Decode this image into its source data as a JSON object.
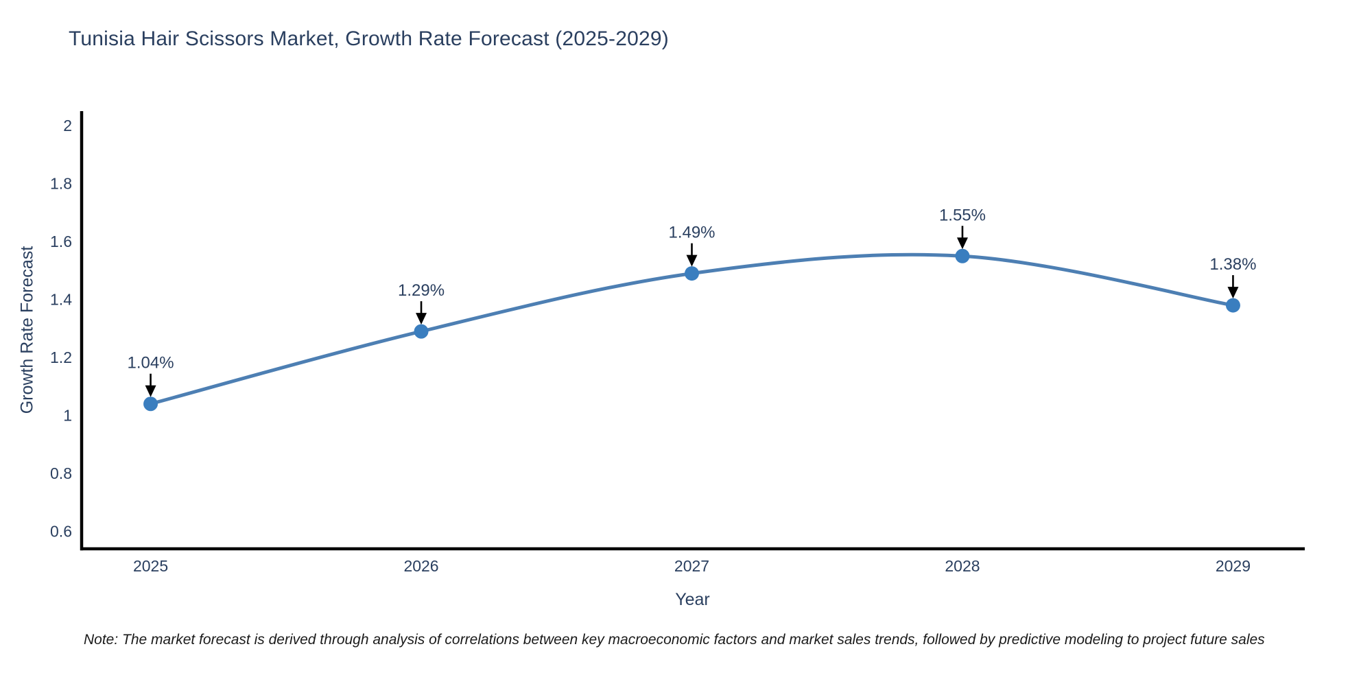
{
  "title": "Tunisia Hair Scissors Market, Growth Rate Forecast (2025-2029)",
  "note": "Note: The market forecast is derived through analysis of correlations between key macroeconomic factors and market sales trends, followed by predictive modeling to project future sales",
  "chart_data": {
    "type": "line",
    "title": "Tunisia Hair Scissors Market, Growth Rate Forecast (2025-2029)",
    "x": [
      2025,
      2026,
      2027,
      2028,
      2029
    ],
    "series": [
      {
        "name": "Growth Rate Forecast",
        "values": [
          1.04,
          1.29,
          1.49,
          1.55,
          1.38
        ]
      }
    ],
    "point_labels": [
      "1.04%",
      "1.29%",
      "1.49%",
      "1.55%",
      "1.38%"
    ],
    "xlabel": "Year",
    "ylabel": "Growth Rate Forecast",
    "xticks": [
      "2025",
      "2026",
      "2027",
      "2028",
      "2029"
    ],
    "yticks": [
      0.6,
      0.8,
      1,
      1.2,
      1.4,
      1.6,
      1.8,
      2
    ],
    "xlim": [
      2024.74,
      2029.26
    ],
    "ylim": [
      0.54,
      2.05
    ],
    "line_shape": "spline",
    "grid": false,
    "legend": "none",
    "annotations": "value labels with downward arrows above each point",
    "colors": {
      "line": "#4d7fb3",
      "marker": "#3a7ebf",
      "arrow": "#000000",
      "axis": "#000000",
      "tick_label": "#2a3f5f"
    }
  },
  "styles": {
    "title_color": "#2a3f5f",
    "note_color": "#1a1a1a",
    "background": "#ffffff"
  }
}
